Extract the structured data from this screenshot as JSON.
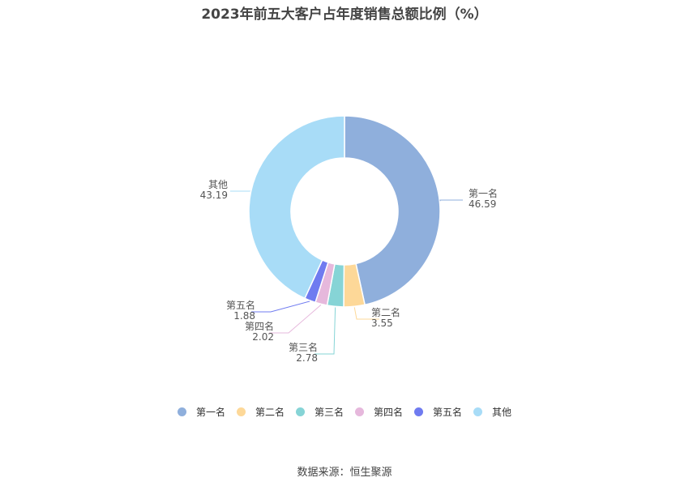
{
  "chart_data": {
    "type": "pie",
    "title": "2023年前五大客户占年度销售总额比例（%）",
    "categories": [
      "第一名",
      "第二名",
      "第三名",
      "第四名",
      "第五名",
      "其他"
    ],
    "values": [
      46.59,
      3.55,
      2.78,
      2.02,
      1.88,
      43.19
    ],
    "value_labels": [
      "46.59",
      "3.55",
      "2.78",
      "2.02",
      "1.88",
      "43.19"
    ],
    "colors": [
      "#8fafdc",
      "#fdd898",
      "#86d4d6",
      "#e6b8dc",
      "#6f7bf0",
      "#a8dcf7"
    ],
    "legend_position": "bottom",
    "donut": true
  },
  "source": "数据来源：恒生聚源"
}
